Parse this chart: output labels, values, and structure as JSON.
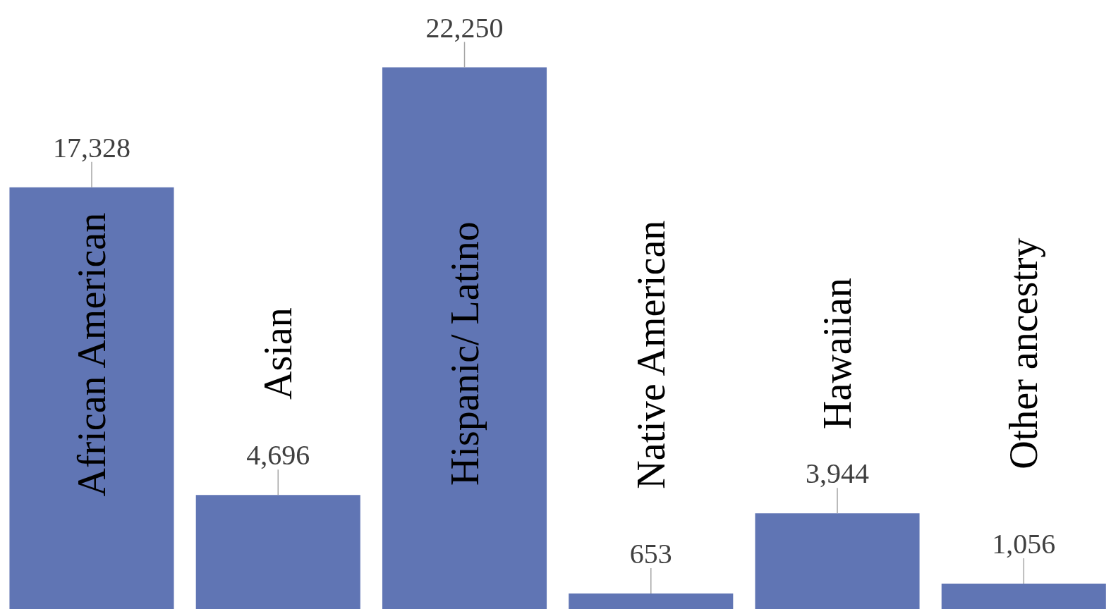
{
  "chart_data": {
    "type": "bar",
    "categories": [
      "African American",
      "Asian",
      "Hispanic/ Latino",
      "Native American",
      "Hawaiian",
      "Other ancestry"
    ],
    "values": [
      17328,
      4696,
      22250,
      653,
      3944,
      1056
    ],
    "value_labels": [
      "17,328",
      "4,696",
      "22,250",
      "653",
      "3,944",
      "1,056"
    ],
    "color": "#6075b4",
    "ylim": [
      0,
      25000
    ],
    "tick_labels": "x"
  }
}
